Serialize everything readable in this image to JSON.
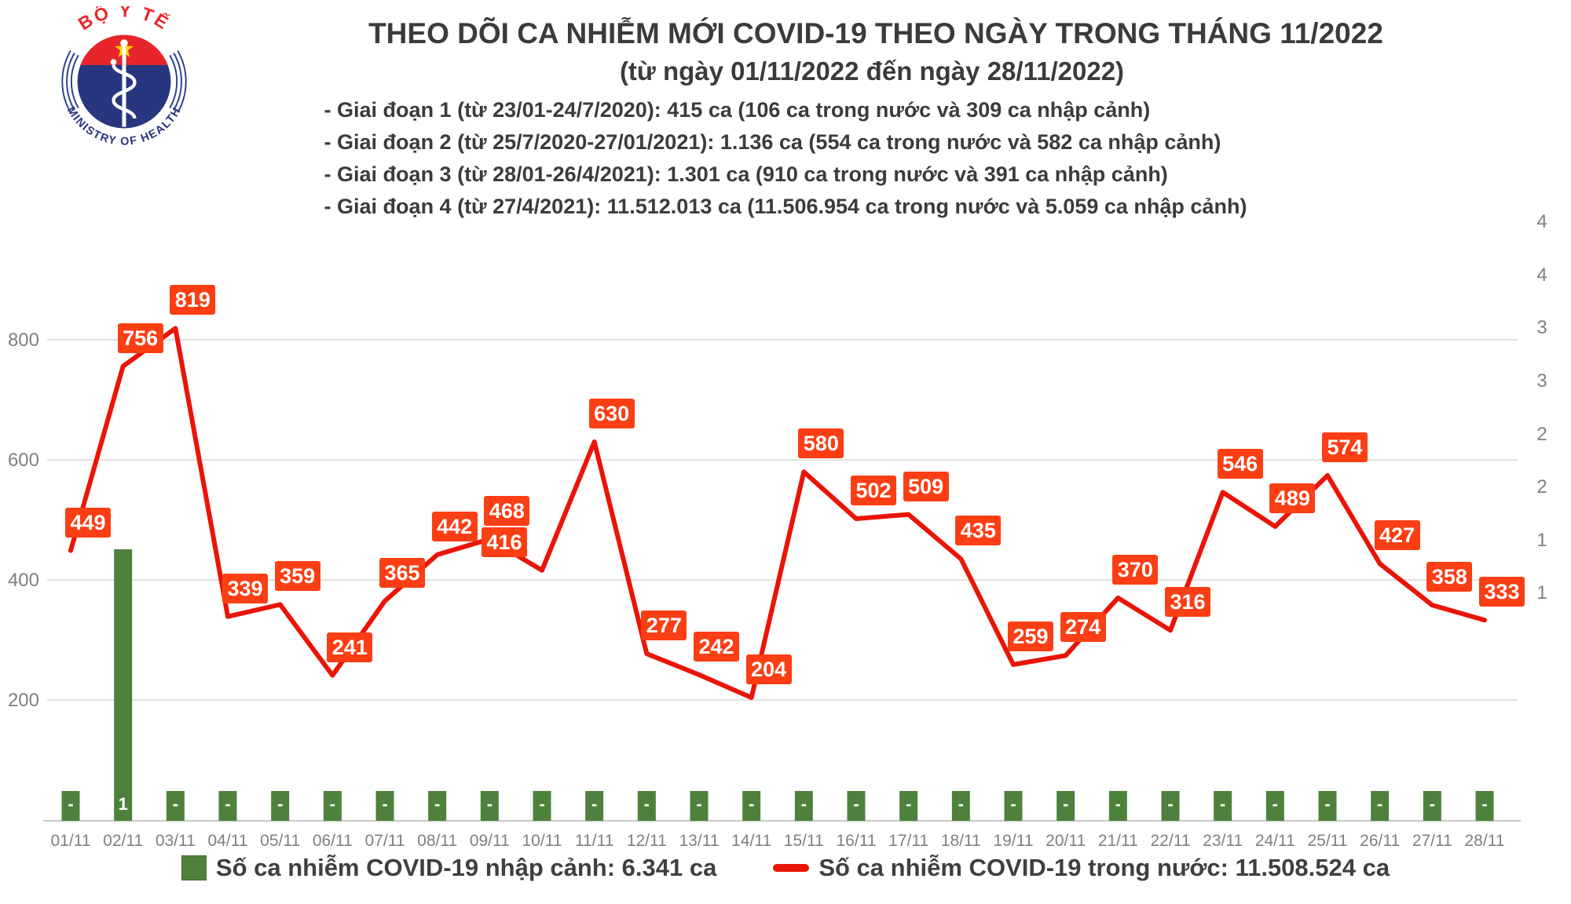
{
  "logo": {
    "top_text": "BỘ Y TẾ",
    "bottom_text": "MINISTRY OF HEALTH"
  },
  "header": {
    "title": "THEO DÕI CA NHIỄM MỚI COVID-19 THEO NGÀY TRONG THÁNG 11/2022",
    "subtitle": "(từ ngày 01/11/2022 đến ngày 28/11/2022)",
    "phases": [
      "- Giai đoạn 1 (từ 23/01-24/7/2020): 415 ca (106 ca trong nước và 309 ca nhập cảnh)",
      "- Giai đoạn 2 (từ 25/7/2020-27/01/2021): 1.136 ca (554 ca trong nước và 582 ca nhập cảnh)",
      "- Giai đoạn 3 (từ 28/01-26/4/2021): 1.301 ca (910 ca trong nước và 391 ca nhập cảnh)",
      "- Giai đoạn 4 (từ 27/4/2021): 11.512.013 ca (11.506.954 ca trong nước và 5.059 ca nhập cảnh)"
    ]
  },
  "chart_data": {
    "type": "combo",
    "categories": [
      "01/11",
      "02/11",
      "03/11",
      "04/11",
      "05/11",
      "06/11",
      "07/11",
      "08/11",
      "09/11",
      "10/11",
      "11/11",
      "12/11",
      "13/11",
      "14/11",
      "15/11",
      "16/11",
      "17/11",
      "18/11",
      "19/11",
      "20/11",
      "21/11",
      "22/11",
      "23/11",
      "24/11",
      "25/11",
      "26/11",
      "27/11",
      "28/11"
    ],
    "series": [
      {
        "name": "Số ca nhiễm COVID-19 nhập cảnh",
        "type": "bar",
        "color": "#4e823c",
        "values": [
          "-",
          "1",
          "-",
          "-",
          "-",
          "-",
          "-",
          "-",
          "-",
          "-",
          "-",
          "-",
          "-",
          "-",
          "-",
          "-",
          "-",
          "-",
          "-",
          "-",
          "-",
          "-",
          "-",
          "-",
          "-",
          "-",
          "-",
          "-"
        ]
      },
      {
        "name": "Số ca nhiễm COVID-19 trong nước",
        "type": "line",
        "color": "#ea1407",
        "label_bg": "#fb3e14",
        "values": [
          449,
          756,
          819,
          339,
          359,
          241,
          365,
          442,
          468,
          416,
          630,
          277,
          242,
          204,
          580,
          502,
          509,
          435,
          259,
          274,
          370,
          316,
          546,
          489,
          574,
          427,
          358,
          333
        ]
      }
    ],
    "left_axis": {
      "ticks": [
        "200",
        "400",
        "600",
        "800"
      ]
    },
    "right_axis": {
      "tick_labels": [
        "4",
        "4",
        "3",
        "3",
        "2",
        "2",
        "1",
        "1"
      ]
    },
    "grid": true,
    "legend_position": "bottom"
  },
  "legend": {
    "bar_label": "Số ca nhiễm COVID-19 nhập cảnh: 6.341 ca",
    "line_label": "Số ca nhiễm COVID-19 trong nước: 11.508.524 ca"
  }
}
